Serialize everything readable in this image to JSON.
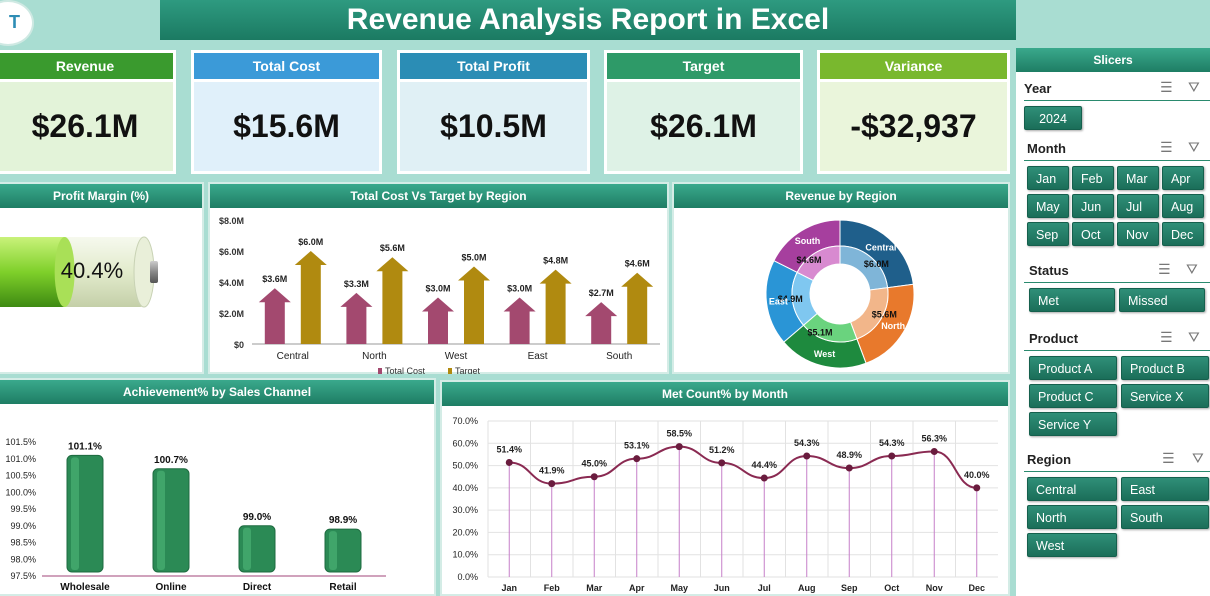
{
  "logo_text": "T",
  "title": "Revenue Analysis Report in Excel",
  "kpis": [
    {
      "label": "Revenue",
      "value": "$26.1M",
      "head_color": "#3a9a2e",
      "bg": "#e3f3d9"
    },
    {
      "label": "Total Cost",
      "value": "$15.6M",
      "head_color": "#3b9ad8",
      "bg": "#e0f0fa"
    },
    {
      "label": "Total Profit",
      "value": "$10.5M",
      "head_color": "#2b8db5",
      "bg": "#e0f0f5"
    },
    {
      "label": "Target",
      "value": "$26.1M",
      "head_color": "#2e9a68",
      "bg": "#def2e6"
    },
    {
      "label": "Variance",
      "value": "-$32,937",
      "head_color": "#79b82e",
      "bg": "#eaf5db"
    }
  ],
  "panels": {
    "profit_margin": {
      "title": "Profit Margin (%)",
      "value": "40.4%"
    },
    "cost_vs_target": {
      "title": "Total Cost Vs Target by Region"
    },
    "revenue_region": {
      "title": "Revenue by Region"
    },
    "achievement": {
      "title": "Achievement% by Sales Channel"
    },
    "met_count": {
      "title": "Met Count% by Month"
    }
  },
  "chart_data": [
    {
      "type": "bar",
      "title": "Total Cost Vs Target by Region",
      "categories": [
        "Central",
        "North",
        "West",
        "East",
        "South"
      ],
      "series": [
        {
          "name": "Total Cost",
          "values": [
            3.6,
            3.3,
            3.0,
            3.0,
            2.7
          ],
          "labels": [
            "$3.6M",
            "$3.3M",
            "$3.0M",
            "$3.0M",
            "$2.7M"
          ],
          "color": "#a3496f"
        },
        {
          "name": "Target",
          "values": [
            6.0,
            5.6,
            5.0,
            4.8,
            4.6
          ],
          "labels": [
            "$6.0M",
            "$5.6M",
            "$5.0M",
            "$4.8M",
            "$4.6M"
          ],
          "color": "#b08a10"
        }
      ],
      "ylim": [
        0,
        8
      ],
      "yticks": [
        "$0",
        "$2.0M",
        "$4.0M",
        "$6.0M",
        "$8.0M"
      ],
      "legend": "bottom"
    },
    {
      "type": "pie",
      "title": "Revenue by Region",
      "slices": [
        {
          "name": "Central",
          "value": 6.0,
          "label": "$6.0M",
          "color": "#1f5f8b"
        },
        {
          "name": "North",
          "value": 5.6,
          "label": "$5.6M",
          "color": "#e8792c"
        },
        {
          "name": "West",
          "value": 5.1,
          "label": "$5.1M",
          "color": "#1e8a3e"
        },
        {
          "name": "East",
          "value": 4.9,
          "label": "$4.9M",
          "color": "#2a95d6"
        },
        {
          "name": "South",
          "value": 4.6,
          "label": "$4.6M",
          "color": "#a63f9e"
        }
      ]
    },
    {
      "type": "bar",
      "title": "Achievement% by Sales Channel",
      "categories": [
        "Wholesale",
        "Online",
        "Direct",
        "Retail"
      ],
      "values": [
        101.1,
        100.7,
        99.0,
        98.9
      ],
      "labels": [
        "101.1%",
        "100.7%",
        "99.0%",
        "98.9%"
      ],
      "ylim": [
        97.5,
        101.5
      ],
      "yticks": [
        "97.5%",
        "98.0%",
        "98.5%",
        "99.0%",
        "99.5%",
        "100.0%",
        "100.5%",
        "101.0%",
        "101.5%"
      ]
    },
    {
      "type": "line",
      "title": "Met Count% by Month",
      "categories": [
        "Jan",
        "Feb",
        "Mar",
        "Apr",
        "May",
        "Jun",
        "Jul",
        "Aug",
        "Sep",
        "Oct",
        "Nov",
        "Dec"
      ],
      "values": [
        51.4,
        41.9,
        45.0,
        53.1,
        58.5,
        51.2,
        44.4,
        54.3,
        48.9,
        54.3,
        56.3,
        40.0
      ],
      "labels": [
        "51.4%",
        "41.9%",
        "45.0%",
        "53.1%",
        "58.5%",
        "51.2%",
        "44.4%",
        "54.3%",
        "48.9%",
        "54.3%",
        "56.3%",
        "40.0%"
      ],
      "ylim": [
        0,
        70
      ],
      "yticks": [
        "0.0%",
        "10.0%",
        "20.0%",
        "30.0%",
        "40.0%",
        "50.0%",
        "60.0%",
        "70.0%"
      ],
      "grid": true
    }
  ],
  "slicers": {
    "title": "Slicers",
    "year": {
      "label": "Year",
      "options": [
        "2024"
      ]
    },
    "month": {
      "label": "Month",
      "options": [
        "Jan",
        "Feb",
        "Mar",
        "Apr",
        "May",
        "Jun",
        "Jul",
        "Aug",
        "Sep",
        "Oct",
        "Nov",
        "Dec"
      ]
    },
    "status": {
      "label": "Status",
      "options": [
        "Met",
        "Missed"
      ]
    },
    "product": {
      "label": "Product",
      "options": [
        "Product A",
        "Product B",
        "Product C",
        "Service X",
        "Service Y"
      ]
    },
    "region": {
      "label": "Region",
      "options": [
        "Central",
        "East",
        "North",
        "South",
        "West"
      ]
    },
    "icons": [
      "multi-select-icon",
      "clear-filter-icon"
    ]
  }
}
